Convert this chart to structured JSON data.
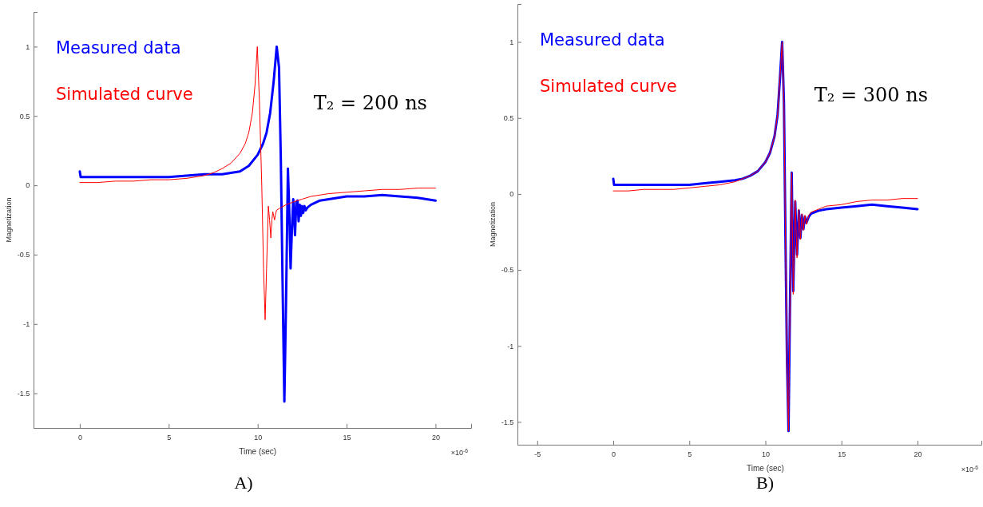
{
  "chart_data": [
    {
      "type": "line",
      "xlabel": "Time (sec)",
      "ylabel": "Magnetization",
      "xlim": [
        -2.6,
        22
      ],
      "ylim": [
        -1.75,
        1.25
      ],
      "xticks": [
        0,
        5,
        10,
        15,
        20
      ],
      "yticks": [
        -1.5,
        -1,
        -0.5,
        0,
        0.5,
        1
      ],
      "legend": "top left",
      "grid": false,
      "marker": "none",
      "line_style": "solid",
      "annotations": [
        "T₂ = 200 ns",
        "×10$^{-6}$",
        "A)"
      ],
      "series": [
        {
          "name": "Measured data",
          "color": "#0000ff",
          "x": [
            0,
            0.05,
            1,
            2,
            3,
            4,
            5,
            6,
            7,
            8,
            8.5,
            9,
            9.5,
            10,
            10.3,
            10.5,
            10.7,
            10.9,
            11.07,
            11.2,
            11.3,
            11.4,
            11.5,
            11.6,
            11.7,
            11.78,
            11.85,
            11.93,
            12.0,
            12.1,
            12.17,
            12.24,
            12.3,
            12.37,
            12.43,
            12.5,
            12.56,
            12.63,
            12.7,
            12.8,
            13,
            13.5,
            14,
            15,
            16,
            17,
            18,
            19,
            20
          ],
          "values": [
            0.1,
            0.06,
            0.06,
            0.06,
            0.06,
            0.06,
            0.06,
            0.07,
            0.08,
            0.08,
            0.09,
            0.1,
            0.14,
            0.22,
            0.3,
            0.38,
            0.52,
            0.75,
            1,
            0.85,
            0.2,
            -0.7,
            -1.56,
            -0.8,
            0.12,
            -0.2,
            -0.6,
            -0.3,
            -0.1,
            -0.36,
            -0.12,
            -0.11,
            -0.26,
            -0.14,
            -0.22,
            -0.15,
            -0.2,
            -0.15,
            -0.18,
            -0.16,
            -0.14,
            -0.11,
            -0.1,
            -0.08,
            -0.08,
            -0.07,
            -0.08,
            -0.09,
            -0.11
          ]
        },
        {
          "name": "Simulated curve",
          "color": "#ff0000",
          "x": [
            0,
            1,
            2,
            3,
            4,
            5,
            6,
            7,
            7.5,
            8,
            8.5,
            9,
            9.3,
            9.5,
            9.7,
            9.85,
            9.98,
            10.1,
            10.23,
            10.33,
            10.42,
            10.5,
            10.6,
            10.67,
            10.74,
            10.8,
            10.85,
            10.9,
            10.95,
            11.0,
            11.06,
            11.3,
            11.6,
            12,
            12.5,
            13,
            14,
            15,
            16,
            17,
            18,
            19,
            20
          ],
          "values": [
            0.02,
            0.02,
            0.03,
            0.03,
            0.04,
            0.04,
            0.05,
            0.07,
            0.09,
            0.12,
            0.16,
            0.23,
            0.3,
            0.38,
            0.52,
            0.72,
            1,
            0.6,
            0,
            -0.6,
            -0.97,
            -0.6,
            -0.15,
            -0.25,
            -0.38,
            -0.25,
            -0.19,
            -0.22,
            -0.25,
            -0.21,
            -0.18,
            -0.16,
            -0.14,
            -0.12,
            -0.1,
            -0.08,
            -0.06,
            -0.05,
            -0.04,
            -0.03,
            -0.03,
            -0.02,
            -0.02
          ]
        }
      ]
    },
    {
      "type": "line",
      "xlabel": "Time (sec)",
      "ylabel": "Magnetization",
      "xlim": [
        -6.3,
        24.2
      ],
      "ylim": [
        -1.65,
        1.25
      ],
      "xticks": [
        -5,
        0,
        5,
        10,
        15,
        20
      ],
      "yticks": [
        -1.5,
        -1,
        -0.5,
        0,
        0.5,
        1
      ],
      "legend": "top left",
      "grid": false,
      "marker": "none",
      "line_style": "solid",
      "annotations": [
        "T₂ = 300 ns",
        "×10$^{-6}$",
        "B)"
      ],
      "series": [
        {
          "name": "Measured data",
          "color": "#0000ff",
          "x": [
            0,
            0.05,
            1,
            2,
            3,
            4,
            5,
            6,
            7,
            8,
            8.5,
            9,
            9.5,
            10,
            10.3,
            10.6,
            10.8,
            10.95,
            11.1,
            11.22,
            11.32,
            11.42,
            11.52,
            11.62,
            11.73,
            11.83,
            11.96,
            12.08,
            12.2,
            12.3,
            12.4,
            12.5,
            12.6,
            12.7,
            12.85,
            13,
            13.5,
            14,
            15,
            16,
            17,
            18,
            19,
            20
          ],
          "values": [
            0.1,
            0.06,
            0.06,
            0.06,
            0.06,
            0.06,
            0.06,
            0.07,
            0.08,
            0.09,
            0.1,
            0.12,
            0.15,
            0.21,
            0.27,
            0.38,
            0.52,
            0.75,
            1,
            0.6,
            -0.3,
            -1.1,
            -1.56,
            -0.7,
            0.14,
            -0.64,
            -0.05,
            -0.4,
            -0.11,
            -0.29,
            -0.14,
            -0.23,
            -0.15,
            -0.19,
            -0.15,
            -0.13,
            -0.11,
            -0.1,
            -0.09,
            -0.08,
            -0.07,
            -0.08,
            -0.09,
            -0.1
          ]
        },
        {
          "name": "Simulated curve",
          "color": "#ff0000",
          "x": [
            0,
            1,
            2,
            3,
            4,
            5,
            6,
            7,
            8,
            8.5,
            9,
            9.5,
            10,
            10.3,
            10.6,
            10.8,
            10.95,
            11.1,
            11.22,
            11.32,
            11.42,
            11.52,
            11.62,
            11.73,
            11.83,
            11.96,
            12.08,
            12.2,
            12.3,
            12.4,
            12.5,
            12.6,
            12.7,
            12.85,
            13,
            13.5,
            14,
            15,
            16,
            17,
            18,
            19,
            20
          ],
          "values": [
            0.02,
            0.02,
            0.03,
            0.03,
            0.03,
            0.04,
            0.05,
            0.06,
            0.08,
            0.1,
            0.12,
            0.15,
            0.21,
            0.27,
            0.38,
            0.52,
            0.75,
            1,
            0.6,
            -0.3,
            -1.1,
            -1.56,
            -0.7,
            0.14,
            -0.66,
            -0.04,
            -0.42,
            -0.1,
            -0.3,
            -0.13,
            -0.24,
            -0.14,
            -0.2,
            -0.14,
            -0.12,
            -0.1,
            -0.08,
            -0.07,
            -0.05,
            -0.04,
            -0.04,
            -0.03,
            -0.03
          ]
        }
      ]
    }
  ]
}
